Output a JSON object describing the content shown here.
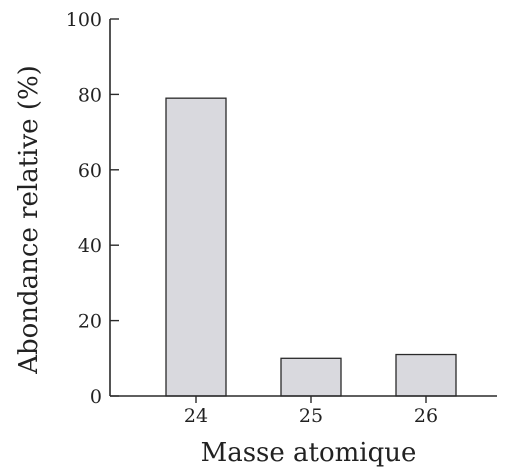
{
  "chart_data": {
    "type": "bar",
    "categories": [
      "24",
      "25",
      "26"
    ],
    "values": [
      79,
      10,
      11
    ],
    "title": "",
    "xlabel": "Masse atomique",
    "ylabel": "Abondance relative (%)",
    "ylim": [
      0,
      100
    ],
    "yticks": [
      "0",
      "20",
      "40",
      "60",
      "80",
      "100"
    ],
    "grid": false,
    "legend": "none",
    "colors": {
      "bar_fill": "#d9d9de",
      "bar_stroke": "#2a2a2a",
      "axis": "#2a2a2a"
    }
  }
}
